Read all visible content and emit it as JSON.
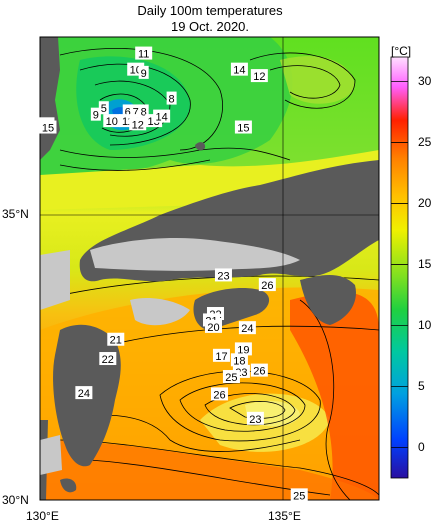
{
  "title": {
    "line1": "Daily 100m temperatures",
    "line2": "19 Oct. 2020."
  },
  "map": {
    "lon_range": [
      130,
      138.5
    ],
    "lat_range": [
      30,
      37.2
    ],
    "lat_labels": [
      "35°N",
      "30°N"
    ],
    "lon_labels": [
      "130°E",
      "135°E"
    ],
    "land_color": "#5a5a5a",
    "no_data_color": "#c8c8c8",
    "contour_labels": [
      {
        "text": "11",
        "lon": 132.6,
        "lat": 36.95
      },
      {
        "text": "10",
        "lon": 132.4,
        "lat": 36.7
      },
      {
        "text": "9",
        "lon": 132.6,
        "lat": 36.65
      },
      {
        "text": "14",
        "lon": 135.0,
        "lat": 36.7
      },
      {
        "text": "12",
        "lon": 135.5,
        "lat": 36.6
      },
      {
        "text": "8",
        "lon": 133.3,
        "lat": 36.25
      },
      {
        "text": "5",
        "lon": 131.6,
        "lat": 36.1
      },
      {
        "text": "6",
        "lon": 132.2,
        "lat": 36.05
      },
      {
        "text": "7",
        "lon": 132.4,
        "lat": 36.05
      },
      {
        "text": "8",
        "lon": 132.6,
        "lat": 36.05
      },
      {
        "text": "9",
        "lon": 131.4,
        "lat": 36.0
      },
      {
        "text": "10",
        "lon": 131.8,
        "lat": 35.9
      },
      {
        "text": "11",
        "lon": 132.2,
        "lat": 35.9
      },
      {
        "text": "12",
        "lon": 132.45,
        "lat": 35.85
      },
      {
        "text": "13",
        "lon": 132.85,
        "lat": 35.9
      },
      {
        "text": "14",
        "lon": 133.05,
        "lat": 35.97
      },
      {
        "text": "14",
        "lon": 130.15,
        "lat": 35.85
      },
      {
        "text": "15",
        "lon": 130.2,
        "lat": 35.8
      },
      {
        "text": "15",
        "lon": 135.1,
        "lat": 35.8
      },
      {
        "text": "23",
        "lon": 134.6,
        "lat": 33.5
      },
      {
        "text": "26",
        "lon": 135.7,
        "lat": 33.35
      },
      {
        "text": "22",
        "lon": 134.4,
        "lat": 32.9
      },
      {
        "text": "21",
        "lon": 134.3,
        "lat": 32.8
      },
      {
        "text": "20",
        "lon": 134.35,
        "lat": 32.7
      },
      {
        "text": "24",
        "lon": 135.2,
        "lat": 32.68
      },
      {
        "text": "21",
        "lon": 131.9,
        "lat": 32.5
      },
      {
        "text": "19",
        "lon": 135.1,
        "lat": 32.35
      },
      {
        "text": "17",
        "lon": 134.55,
        "lat": 32.25
      },
      {
        "text": "18",
        "lon": 135.0,
        "lat": 32.18
      },
      {
        "text": "22",
        "lon": 131.7,
        "lat": 32.2
      },
      {
        "text": "23",
        "lon": 135.05,
        "lat": 32.0
      },
      {
        "text": "26",
        "lon": 135.5,
        "lat": 32.02
      },
      {
        "text": "25",
        "lon": 134.8,
        "lat": 31.92
      },
      {
        "text": "24",
        "lon": 131.1,
        "lat": 31.67
      },
      {
        "text": "26",
        "lon": 134.5,
        "lat": 31.65
      },
      {
        "text": "23",
        "lon": 135.4,
        "lat": 31.27
      },
      {
        "text": "25",
        "lon": 136.5,
        "lat": 30.08
      }
    ]
  },
  "colorbar": {
    "unit": "[°C]",
    "ticks": [
      "0",
      "5",
      "10",
      "15",
      "20",
      "25",
      "30"
    ],
    "tick_values": [
      0,
      5,
      10,
      15,
      20,
      25,
      30
    ],
    "range": [
      -2.5,
      32
    ],
    "colors": [
      "#2a10a0",
      "#0040ff",
      "#00a0e0",
      "#00c8a0",
      "#20d040",
      "#80e020",
      "#f0f000",
      "#ffc000",
      "#ff8000",
      "#ff2000",
      "#ff60ff",
      "#ffe0ff"
    ]
  }
}
